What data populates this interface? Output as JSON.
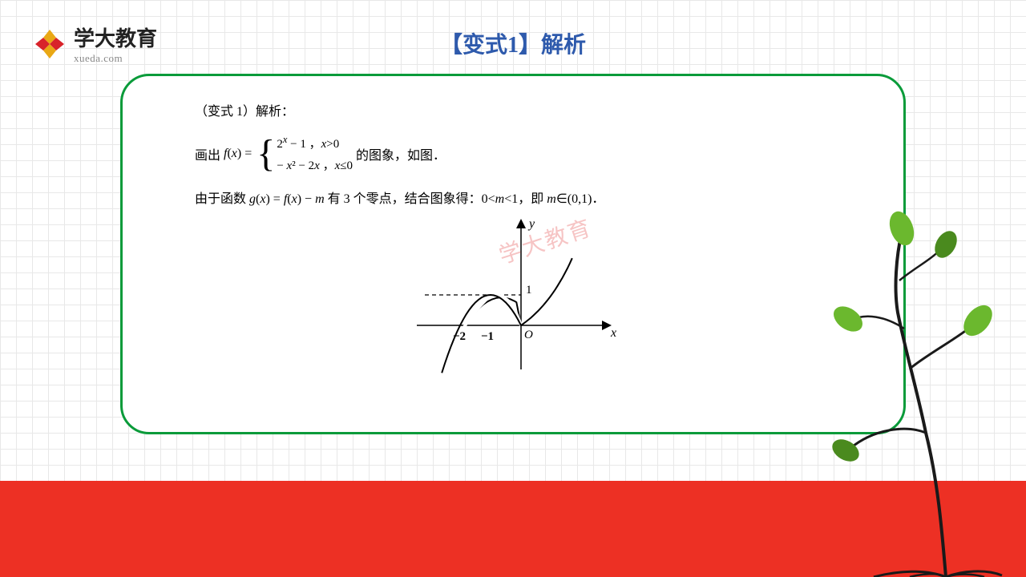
{
  "logo": {
    "title": "学大教育",
    "subtitle": "xueda.com"
  },
  "colors": {
    "title": "#2e5aac",
    "border": "#0a9b3a",
    "red": "#ed3024",
    "logo_red": "#d8232a",
    "logo_yellow": "#e9a815",
    "watermark": "#e85a5a",
    "grid": "#e8e8e8",
    "leaf": "#6bb82e",
    "leaf_dark": "#4a8a1e",
    "branch": "#1a1a1a",
    "graph_stroke": "#000"
  },
  "page_title": "【变式1】解析",
  "content": {
    "heading": "（变式 1）解析：",
    "draw_prefix": "画出 ",
    "fx_label": "f(x) = ",
    "piece1": "2ˣ − 1 ，x>0",
    "piece2": "− x² − 2x ，x≤0",
    "draw_suffix": "   的图象，如图．",
    "analysis": "由于函数 g(x) = f(x) − m 有 3 个零点，结合图象得：0<m<1，即 m∈(0,1)．",
    "graph": {
      "type": "function-plot",
      "x_axis_label": "x",
      "y_axis_label": "y",
      "origin_label": "O",
      "x_ticks": [
        "-2",
        "-1"
      ],
      "y_marker": "1",
      "xlim": [
        -3,
        3.2
      ],
      "ylim": [
        -1.2,
        2.6
      ],
      "dash_y": 1,
      "dash_xrange": [
        -3,
        0
      ],
      "curves": [
        {
          "name": "parabola",
          "domain": [
            -2.6,
            0
          ],
          "formula": "-x^2-2x",
          "stroke_width": 2
        },
        {
          "name": "exponential",
          "domain": [
            0,
            1.7
          ],
          "formula": "2^x-1",
          "stroke_width": 2
        }
      ],
      "stroke": "#000",
      "axis_width": 1.5,
      "arrow_size": 8
    }
  },
  "watermark_text": "学大教育"
}
